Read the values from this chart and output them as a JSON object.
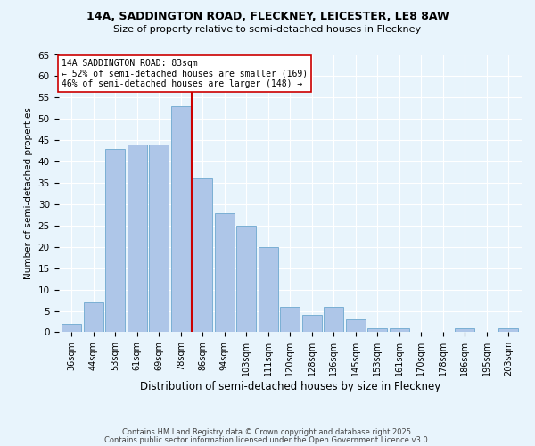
{
  "title1": "14A, SADDINGTON ROAD, FLECKNEY, LEICESTER, LE8 8AW",
  "title2": "Size of property relative to semi-detached houses in Fleckney",
  "xlabel": "Distribution of semi-detached houses by size in Fleckney",
  "ylabel": "Number of semi-detached properties",
  "categories": [
    "36sqm",
    "44sqm",
    "53sqm",
    "61sqm",
    "69sqm",
    "78sqm",
    "86sqm",
    "94sqm",
    "103sqm",
    "111sqm",
    "120sqm",
    "128sqm",
    "136sqm",
    "145sqm",
    "153sqm",
    "161sqm",
    "170sqm",
    "178sqm",
    "186sqm",
    "195sqm",
    "203sqm"
  ],
  "values": [
    2,
    7,
    43,
    44,
    44,
    53,
    36,
    28,
    25,
    20,
    6,
    4,
    6,
    3,
    1,
    1,
    0,
    0,
    1,
    0,
    1
  ],
  "bar_color": "#aec6e8",
  "bar_edge_color": "#7aafd4",
  "vline_color": "#cc0000",
  "annotation_title": "14A SADDINGTON ROAD: 83sqm",
  "annotation_line1": "← 52% of semi-detached houses are smaller (169)",
  "annotation_line2": "46% of semi-detached houses are larger (148) →",
  "annotation_box_color": "#cc0000",
  "ylim": [
    0,
    65
  ],
  "yticks": [
    0,
    5,
    10,
    15,
    20,
    25,
    30,
    35,
    40,
    45,
    50,
    55,
    60,
    65
  ],
  "footer1": "Contains HM Land Registry data © Crown copyright and database right 2025.",
  "footer2": "Contains public sector information licensed under the Open Government Licence v3.0.",
  "bg_color": "#e8f4fc",
  "plot_bg_color": "#e8f4fc",
  "grid_color": "#ffffff"
}
